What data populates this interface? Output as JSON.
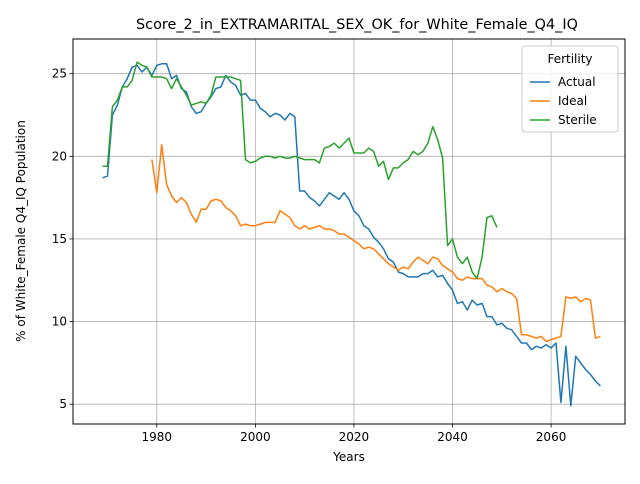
{
  "chart_data": {
    "type": "line",
    "title": "Score_2_in_EXTRAMARITAL_SEX_OK_for_White_Female_Q4_IQ",
    "xlabel": "Years",
    "ylabel": "% of White_Female Q4_IQ Population",
    "xlim": [
      1963,
      2075
    ],
    "ylim": [
      3.8,
      27.1
    ],
    "xticks": [
      1980,
      2000,
      2020,
      2040,
      2060
    ],
    "yticks": [
      5,
      10,
      15,
      20,
      25
    ],
    "grid": true,
    "legend": {
      "title": "Fertility",
      "placement": "top-right"
    },
    "series": [
      {
        "name": "Actual",
        "color": "#1f77b4",
        "points": [
          [
            1969,
            18.7
          ],
          [
            1970,
            18.8
          ],
          [
            1971,
            22.5
          ],
          [
            1972,
            23.1
          ],
          [
            1973,
            24.2
          ],
          [
            1974,
            24.7
          ],
          [
            1975,
            25.4
          ],
          [
            1976,
            25.5
          ],
          [
            1977,
            25.1
          ],
          [
            1978,
            25.4
          ],
          [
            1979,
            24.9
          ],
          [
            1980,
            25.5
          ],
          [
            1981,
            25.6
          ],
          [
            1982,
            25.6
          ],
          [
            1983,
            24.7
          ],
          [
            1984,
            24.9
          ],
          [
            1985,
            24.1
          ],
          [
            1986,
            23.9
          ],
          [
            1987,
            23.0
          ],
          [
            1988,
            22.6
          ],
          [
            1989,
            22.7
          ],
          [
            1990,
            23.2
          ],
          [
            1991,
            23.6
          ],
          [
            1992,
            24.1
          ],
          [
            1993,
            24.2
          ],
          [
            1994,
            24.9
          ],
          [
            1995,
            24.5
          ],
          [
            1996,
            24.3
          ],
          [
            1997,
            23.7
          ],
          [
            1998,
            23.8
          ],
          [
            1999,
            23.4
          ],
          [
            2000,
            23.4
          ],
          [
            2001,
            22.9
          ],
          [
            2002,
            22.7
          ],
          [
            2003,
            22.4
          ],
          [
            2004,
            22.6
          ],
          [
            2005,
            22.5
          ],
          [
            2006,
            22.2
          ],
          [
            2007,
            22.6
          ],
          [
            2008,
            22.4
          ],
          [
            2009,
            17.9
          ],
          [
            2010,
            17.9
          ],
          [
            2011,
            17.5
          ],
          [
            2012,
            17.3
          ],
          [
            2013,
            17.0
          ],
          [
            2014,
            17.4
          ],
          [
            2015,
            17.8
          ],
          [
            2016,
            17.6
          ],
          [
            2017,
            17.4
          ],
          [
            2018,
            17.8
          ],
          [
            2019,
            17.4
          ],
          [
            2020,
            16.7
          ],
          [
            2021,
            16.4
          ],
          [
            2022,
            15.8
          ],
          [
            2023,
            15.6
          ],
          [
            2024,
            15.1
          ],
          [
            2025,
            14.8
          ],
          [
            2026,
            14.4
          ],
          [
            2027,
            13.8
          ],
          [
            2028,
            13.6
          ],
          [
            2029,
            13.0
          ],
          [
            2030,
            12.9
          ],
          [
            2031,
            12.7
          ],
          [
            2032,
            12.7
          ],
          [
            2033,
            12.7
          ],
          [
            2034,
            12.9
          ],
          [
            2035,
            12.9
          ],
          [
            2036,
            13.1
          ],
          [
            2037,
            12.7
          ],
          [
            2038,
            12.8
          ],
          [
            2039,
            12.3
          ],
          [
            2040,
            11.9
          ],
          [
            2041,
            11.1
          ],
          [
            2042,
            11.2
          ],
          [
            2043,
            10.7
          ],
          [
            2044,
            11.3
          ],
          [
            2045,
            11.0
          ],
          [
            2046,
            11.1
          ],
          [
            2047,
            10.3
          ],
          [
            2048,
            10.3
          ],
          [
            2049,
            9.8
          ],
          [
            2050,
            9.9
          ],
          [
            2051,
            9.6
          ],
          [
            2052,
            9.5
          ],
          [
            2053,
            9.1
          ],
          [
            2054,
            8.7
          ],
          [
            2055,
            8.7
          ],
          [
            2056,
            8.3
          ],
          [
            2057,
            8.5
          ],
          [
            2058,
            8.4
          ],
          [
            2059,
            8.6
          ],
          [
            2060,
            8.4
          ],
          [
            2061,
            8.7
          ],
          [
            2062,
            5.1
          ],
          [
            2063,
            8.5
          ],
          [
            2064,
            4.9
          ],
          [
            2065,
            7.9
          ],
          [
            2066,
            7.5
          ],
          [
            2067,
            7.1
          ],
          [
            2068,
            6.8
          ],
          [
            2069,
            6.4
          ],
          [
            2070,
            6.1
          ]
        ]
      },
      {
        "name": "Ideal",
        "color": "#ff7f0e",
        "points": [
          [
            1979,
            19.8
          ],
          [
            1980,
            17.8
          ],
          [
            1981,
            20.7
          ],
          [
            1982,
            18.3
          ],
          [
            1983,
            17.6
          ],
          [
            1984,
            17.2
          ],
          [
            1985,
            17.5
          ],
          [
            1986,
            17.2
          ],
          [
            1987,
            16.5
          ],
          [
            1988,
            16.0
          ],
          [
            1989,
            16.8
          ],
          [
            1990,
            16.8
          ],
          [
            1991,
            17.3
          ],
          [
            1992,
            17.4
          ],
          [
            1993,
            17.3
          ],
          [
            1994,
            16.9
          ],
          [
            1995,
            16.7
          ],
          [
            1996,
            16.4
          ],
          [
            1997,
            15.8
          ],
          [
            1998,
            15.9
          ],
          [
            1999,
            15.8
          ],
          [
            2000,
            15.8
          ],
          [
            2001,
            15.9
          ],
          [
            2002,
            16.0
          ],
          [
            2003,
            16.0
          ],
          [
            2004,
            16.0
          ],
          [
            2005,
            16.7
          ],
          [
            2006,
            16.5
          ],
          [
            2007,
            16.3
          ],
          [
            2008,
            15.8
          ],
          [
            2009,
            15.6
          ],
          [
            2010,
            15.8
          ],
          [
            2011,
            15.6
          ],
          [
            2012,
            15.7
          ],
          [
            2013,
            15.8
          ],
          [
            2014,
            15.6
          ],
          [
            2015,
            15.6
          ],
          [
            2016,
            15.5
          ],
          [
            2017,
            15.3
          ],
          [
            2018,
            15.3
          ],
          [
            2019,
            15.1
          ],
          [
            2020,
            14.9
          ],
          [
            2021,
            14.7
          ],
          [
            2022,
            14.4
          ],
          [
            2023,
            14.5
          ],
          [
            2024,
            14.4
          ],
          [
            2025,
            14.1
          ],
          [
            2026,
            13.8
          ],
          [
            2027,
            13.5
          ],
          [
            2028,
            13.3
          ],
          [
            2029,
            13.1
          ],
          [
            2030,
            13.3
          ],
          [
            2031,
            13.2
          ],
          [
            2032,
            13.6
          ],
          [
            2033,
            13.9
          ],
          [
            2034,
            13.7
          ],
          [
            2035,
            13.5
          ],
          [
            2036,
            13.9
          ],
          [
            2037,
            13.8
          ],
          [
            2038,
            13.4
          ],
          [
            2039,
            13.2
          ],
          [
            2040,
            13.0
          ],
          [
            2041,
            12.6
          ],
          [
            2042,
            12.5
          ],
          [
            2043,
            12.7
          ],
          [
            2044,
            12.6
          ],
          [
            2045,
            12.6
          ],
          [
            2046,
            12.6
          ],
          [
            2047,
            12.2
          ],
          [
            2048,
            12.1
          ],
          [
            2049,
            11.8
          ],
          [
            2050,
            12.0
          ],
          [
            2051,
            11.8
          ],
          [
            2052,
            11.7
          ],
          [
            2053,
            11.4
          ],
          [
            2054,
            9.2
          ],
          [
            2055,
            9.2
          ],
          [
            2056,
            9.1
          ],
          [
            2057,
            9.0
          ],
          [
            2058,
            9.1
          ],
          [
            2059,
            8.8
          ],
          [
            2060,
            8.9
          ],
          [
            2061,
            9.0
          ],
          [
            2062,
            9.1
          ],
          [
            2063,
            11.5
          ],
          [
            2064,
            11.4
          ],
          [
            2065,
            11.5
          ],
          [
            2066,
            11.2
          ],
          [
            2067,
            11.4
          ],
          [
            2068,
            11.3
          ],
          [
            2069,
            9.0
          ],
          [
            2070,
            9.1
          ]
        ]
      },
      {
        "name": "Sterile",
        "color": "#2ca02c",
        "points": [
          [
            1969,
            19.4
          ],
          [
            1970,
            19.4
          ],
          [
            1971,
            23.0
          ],
          [
            1972,
            23.4
          ],
          [
            1973,
            24.2
          ],
          [
            1974,
            24.2
          ],
          [
            1975,
            24.6
          ],
          [
            1976,
            25.7
          ],
          [
            1977,
            25.5
          ],
          [
            1978,
            25.4
          ],
          [
            1979,
            24.8
          ],
          [
            1980,
            24.8
          ],
          [
            1981,
            24.8
          ],
          [
            1982,
            24.7
          ],
          [
            1983,
            24.1
          ],
          [
            1984,
            24.7
          ],
          [
            1985,
            24.2
          ],
          [
            1986,
            23.7
          ],
          [
            1987,
            23.1
          ],
          [
            1988,
            23.2
          ],
          [
            1989,
            23.3
          ],
          [
            1990,
            23.2
          ],
          [
            1991,
            23.7
          ],
          [
            1992,
            24.8
          ],
          [
            1993,
            24.8
          ],
          [
            1994,
            24.8
          ],
          [
            1995,
            24.8
          ],
          [
            1996,
            24.7
          ],
          [
            1997,
            24.6
          ],
          [
            1998,
            19.8
          ],
          [
            1999,
            19.6
          ],
          [
            2000,
            19.7
          ],
          [
            2001,
            19.9
          ],
          [
            2002,
            20.0
          ],
          [
            2003,
            20.0
          ],
          [
            2004,
            19.9
          ],
          [
            2005,
            20.0
          ],
          [
            2006,
            19.9
          ],
          [
            2007,
            19.9
          ],
          [
            2008,
            20.0
          ],
          [
            2009,
            19.9
          ],
          [
            2010,
            19.8
          ],
          [
            2011,
            19.8
          ],
          [
            2012,
            19.8
          ],
          [
            2013,
            19.6
          ],
          [
            2014,
            20.5
          ],
          [
            2015,
            20.6
          ],
          [
            2016,
            20.8
          ],
          [
            2017,
            20.5
          ],
          [
            2018,
            20.8
          ],
          [
            2019,
            21.1
          ],
          [
            2020,
            20.2
          ],
          [
            2021,
            20.2
          ],
          [
            2022,
            20.2
          ],
          [
            2023,
            20.5
          ],
          [
            2024,
            20.3
          ],
          [
            2025,
            19.4
          ],
          [
            2026,
            19.7
          ],
          [
            2027,
            18.6
          ],
          [
            2028,
            19.3
          ],
          [
            2029,
            19.3
          ],
          [
            2030,
            19.6
          ],
          [
            2031,
            19.8
          ],
          [
            2032,
            20.3
          ],
          [
            2033,
            20.1
          ],
          [
            2034,
            20.3
          ],
          [
            2035,
            20.8
          ],
          [
            2036,
            21.8
          ],
          [
            2037,
            21.0
          ],
          [
            2038,
            19.9
          ],
          [
            2039,
            14.6
          ],
          [
            2040,
            15.0
          ],
          [
            2041,
            13.9
          ],
          [
            2042,
            13.5
          ],
          [
            2043,
            13.9
          ],
          [
            2044,
            13.0
          ],
          [
            2045,
            12.6
          ],
          [
            2046,
            13.9
          ],
          [
            2047,
            16.3
          ],
          [
            2048,
            16.4
          ],
          [
            2049,
            15.7
          ]
        ]
      }
    ]
  }
}
